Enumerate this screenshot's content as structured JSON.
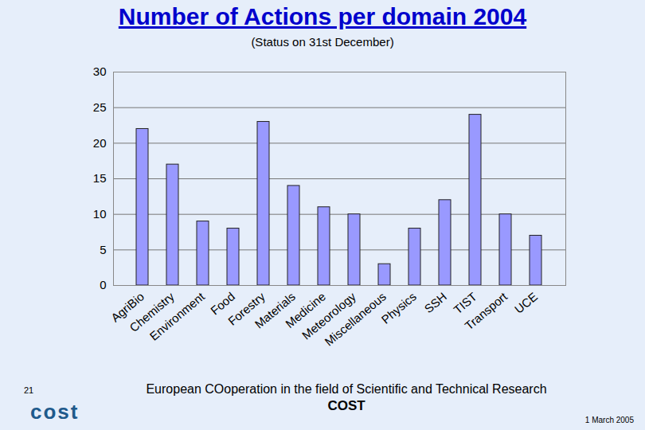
{
  "chart_data": {
    "type": "bar",
    "title": "Number of Actions per domain 2004",
    "subtitle": "(Status on 31st December)",
    "categories": [
      "AgriBio",
      "Chemistry",
      "Environment",
      "Food",
      "Forestry",
      "Materials",
      "Medicine",
      "Meteorology",
      "Miscellaneous",
      "Physics",
      "SSH",
      "TIST",
      "Transport",
      "UCE"
    ],
    "values": [
      22,
      17,
      9,
      8,
      23,
      14,
      11,
      10,
      3,
      8,
      12,
      24,
      10,
      7
    ],
    "color": "#9999ff",
    "ylim": [
      0,
      30
    ],
    "yticks": [
      0,
      5,
      10,
      15,
      20,
      25,
      30
    ],
    "grid": true
  },
  "footer": {
    "page_number": "21",
    "text": "European COoperation in the field of Scientific and Technical Research",
    "acronym": "COST",
    "logo": "cost",
    "date": "1 March 2005"
  }
}
